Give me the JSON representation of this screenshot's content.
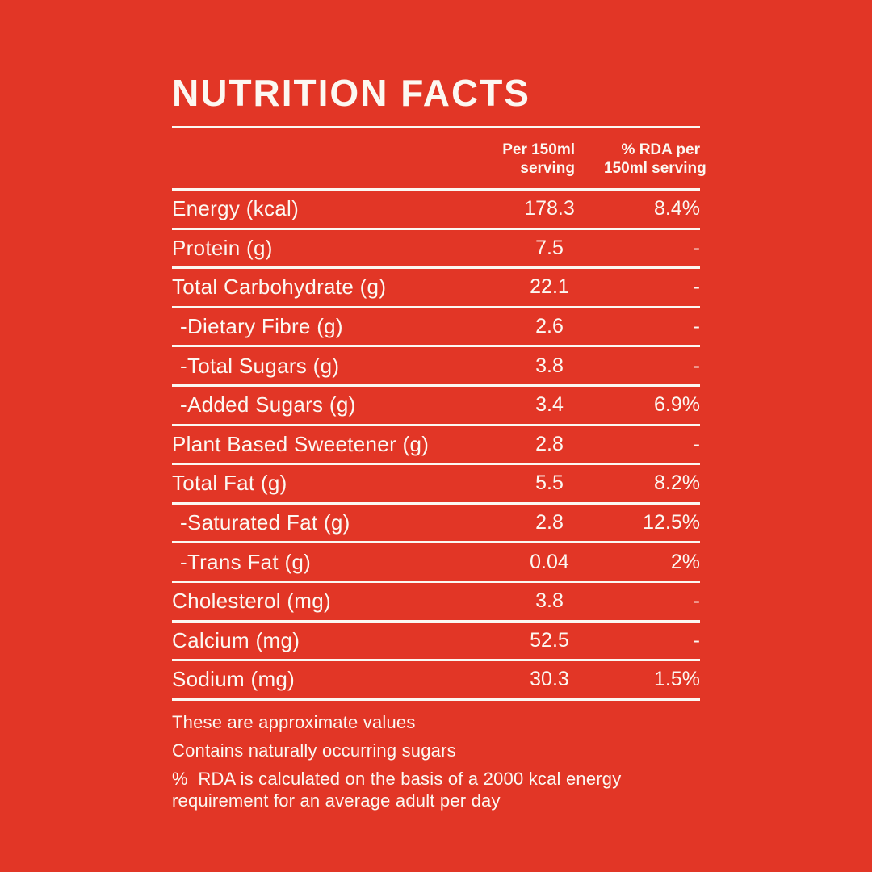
{
  "page": {
    "background_color": "#E23626",
    "text_color": "#FCF8F2"
  },
  "title": "NUTRITION FACTS",
  "table": {
    "header": {
      "col1_line1": "Per 150ml",
      "col1_line2": "serving",
      "col2_line1": "% RDA per",
      "col2_line2": "150ml serving"
    },
    "rows": [
      {
        "label": "Energy (kcal)",
        "value": "178.3",
        "rda": "8.4%"
      },
      {
        "label": "Protein (g)",
        "value": "7.5",
        "rda": "-"
      },
      {
        "label": "Total Carbohydrate (g)",
        "value": "22.1",
        "rda": "-"
      },
      {
        "label": "-Dietary Fibre (g)",
        "value": "2.6",
        "rda": "-"
      },
      {
        "label": "-Total Sugars (g)",
        "value": "3.8",
        "rda": "-"
      },
      {
        "label": "-Added Sugars (g)",
        "value": "3.4",
        "rda": "6.9%"
      },
      {
        "label": "Plant Based Sweetener (g)",
        "value": "2.8",
        "rda": "-"
      },
      {
        "label": "Total Fat (g)",
        "value": "5.5",
        "rda": "8.2%"
      },
      {
        "label": "-Saturated Fat (g)",
        "value": "2.8",
        "rda": "12.5%"
      },
      {
        "label": "-Trans Fat (g)",
        "value": "0.04",
        "rda": "2%"
      },
      {
        "label": "Cholesterol (mg)",
        "value": "3.8",
        "rda": "-"
      },
      {
        "label": "Calcium (mg)",
        "value": "52.5",
        "rda": "-"
      },
      {
        "label": "Sodium (mg)",
        "value": "30.3",
        "rda": "1.5%"
      }
    ]
  },
  "notes": [
    "These are approximate values",
    "Contains naturally occurring sugars",
    "%  RDA is calculated on the basis of a 2000 kcal energy requirement for an average adult per day"
  ]
}
